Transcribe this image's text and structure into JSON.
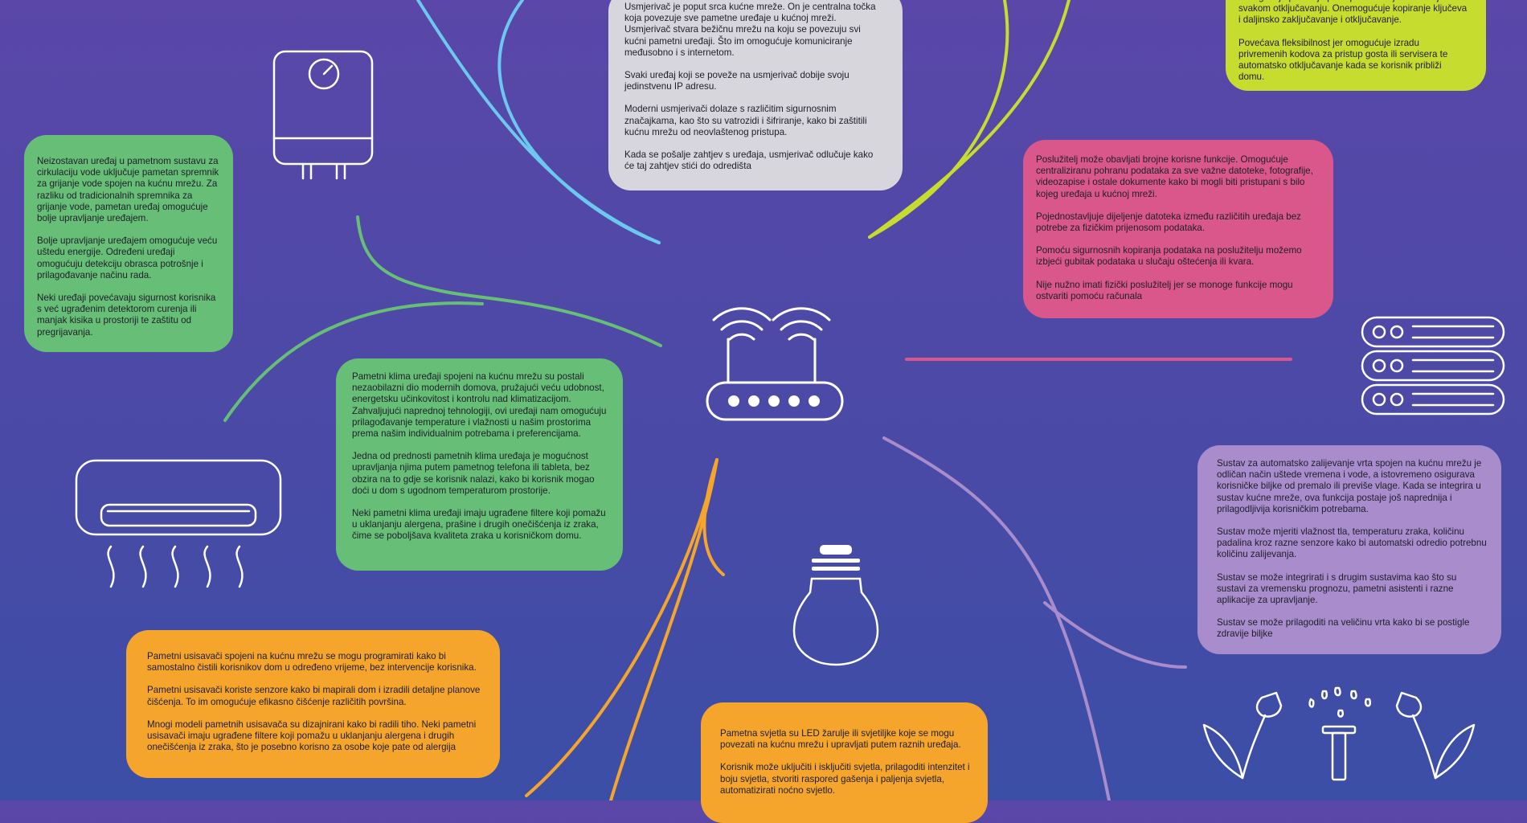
{
  "colors": {
    "background_top": "#5a47a8",
    "background_bottom": "#3b4ea6",
    "router_link": "#6cc8ee",
    "smart_lock": "#c6dc2e",
    "server": "#d9578b",
    "garden": "#a88ccb",
    "lights": "#f5a52b",
    "appliances": "#67bf77",
    "icon_stroke": "#ffffff"
  },
  "icons": {
    "router": "wifi-router-icon",
    "boiler": "water-heater-icon",
    "air_conditioner": "air-conditioner-icon",
    "bulb": "light-bulb-icon",
    "server": "server-rack-icon",
    "garden": "garden-sprinkler-icon"
  },
  "cards": {
    "router": [
      "Usmjerivač je poput srca kućne mreže. On je centralna točka koja povezuje sve pametne uređaje u kućnoj mreži. Usmjerivač stvara bežičnu mrežu na koju se povezuju svi kućni pametni uređaji. Što im omogućuje komuniciranje međusobno i s internetom.",
      "Svaki uređaj koji se poveže na usmjerivač dobije svoju jedinstvenu IP adresu.",
      "Moderni usmjerivači dolaze s različitim sigurnosnim značajkama, kao što su vatrozidi i šifriranje, kako bi zaštitili kućnu mrežu od neovlaštenog pristupa.",
      "Kada se pošalje zahtjev s uređaja, usmjerivač odlučuje kako će taj zahtjev stići do odredišta"
    ],
    "lock": [
      "Omogućuje praćenje pristupa i vođenje evidencije o svakom otključavanju. Onemogućuje kopiranje ključeva i daljinsko zaključavanje i otključavanje.",
      "Povećava fleksibilnost jer omogućuje izradu privremenih kodova za pristup gosta ili servisera te automatsko otključavanje kada se korisnik približi domu."
    ],
    "boiler": [
      "Neizostavan uređaj u pametnom sustavu za cirkulaciju vode uključuje pametan spremnik za grijanje vode spojen na kućnu mrežu. Za razliku od tradicionalnih spremnika za grijanje vode, pametan uređaj omogućuje bolje upravljanje uređajem.",
      "Bolje upravljanje uređajem omogućuje veću uštedu energije. Određeni uređaji omogućuju detekciju obrasca potrošnje i prilagođavanje načinu rada.",
      "Neki uređaji povećavaju sigurnost korisnika s već ugrađenim detektorom curenja ili manjak kisika u prostoriji te zaštitu od pregrijavanja."
    ],
    "server": [
      "Poslužitelj može obavljati brojne korisne funkcije. Omogućuje centraliziranu pohranu podataka za sve važne datoteke, fotografije, videozapise i ostale dokumente kako bi mogli biti pristupani s bilo kojeg uređaja u kućnoj mreži.",
      "Pojednostavljuje dijeljenje datoteka između različitih uređaja bez potrebe za fizičkim prijenosom podataka.",
      "Pomoću sigurnosnih kopiranja podataka na poslužitelju možemo izbjeći gubitak podataka u slučaju oštećenja ili kvara.",
      "Nije nužno imati fizički poslužitelj jer se monoge funkcije mogu ostvariti pomoću računala"
    ],
    "ac": [
      "Pametni klima uređaji spojeni na kućnu mrežu su postali nezaobilazni dio modernih domova, pružajući veću udobnost, energetsku učinkovitost i kontrolu nad klimatizacijom. Zahvaljujući naprednoj tehnologiji, ovi uređaji nam omogućuju prilagođavanje temperature i vlažnosti u našim prostorima prema našim individualnim potrebama i preferencijama.",
      "Jedna od prednosti pametnih klima uređaja je mogućnost upravljanja njima putem pametnog telefona ili tableta, bez obzira na to gdje se korisnik nalazi, kako bi korisnik mogao doći u dom s ugodnom temperaturom prostorije.",
      "Neki pametni klima uređaji imaju ugrađene filtere koji pomažu u uklanjanju alergena, prašine i drugih onečišćenja iz zraka, čime se poboljšava kvaliteta zraka u korisničkom domu."
    ],
    "garden": [
      "Sustav za automatsko zalijevanje vrta spojen na kućnu mrežu je odličan način uštede vremena i vode, a istovremeno osigurava korisničke biljke od premalo ili previše vlage. Kada se integrira u sustav kućne mreže, ova funkcija postaje još naprednija i prilagodljivija korisničkim potrebama.",
      "Sustav može mjeriti vlažnost tla, temperaturu zraka, količinu padalina kroz razne senzore kako bi automatski odredio potrebnu količinu zalijevanja.",
      "Sustav se može integrirati i s drugim sustavima kao što su sustavi za vremensku prognozu, pametni asistenti i razne aplikacije za upravljanje.",
      "Sustav se može prilagoditi na veličinu vrta kako bi se postigle zdravije biljke"
    ],
    "vacuum": [
      "Pametni usisavači spojeni na kućnu mrežu se mogu programirati kako bi samostalno čistili korisnikov dom u određeno vrijeme, bez intervencije korisnika.",
      "Pametni usisavači koriste senzore kako bi mapirali dom i izradili detaljne planove čišćenja. To im omogućuje efikasno čišćenje različitih površina.",
      "Mnogi modeli pametnih usisavača su dizajnirani kako bi radili tiho. Neki pametni usisavači imaju ugrađene filtere koji pomažu u uklanjanju alergena i drugih onečišćenja iz zraka, što je posebno korisno za osobe koje pate od alergija"
    ],
    "lights": [
      "Pametna svjetla su LED žarulje ili svjetiljke koje se mogu povezati na kućnu mrežu i upravljati putem raznih uređaja.",
      "Korisnik može uključiti i isključiti svjetla, prilagoditi intenzitet i boju svjetla, stvoriti raspored gašenja i paljenja svjetla, automatizirati noćno svjetlo."
    ]
  }
}
